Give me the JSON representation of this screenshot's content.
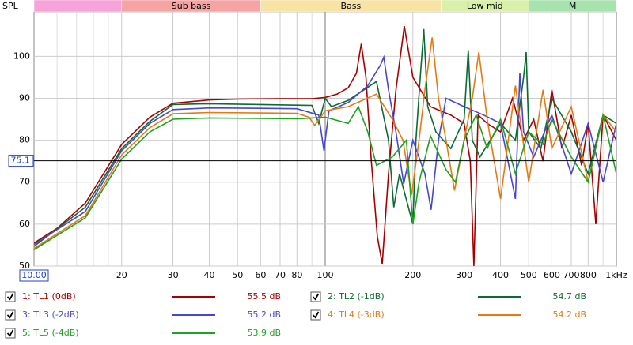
{
  "chart_data": {
    "type": "line",
    "y_label": "SPL",
    "xscale": "log",
    "grid": true,
    "xlim": [
      10,
      1000
    ],
    "ylim": [
      50,
      110.6
    ],
    "xticks": [
      20,
      30,
      40,
      50,
      60,
      70,
      80,
      100,
      200,
      300,
      400,
      500,
      600,
      700,
      800,
      {
        "value": 1000,
        "label": "1kHz"
      }
    ],
    "minor_xticks": [
      12,
      14,
      16,
      18,
      90,
      900
    ],
    "yticks": [
      50,
      60,
      70,
      80,
      90,
      100
    ],
    "cursor": {
      "x": {
        "value": 10,
        "label": "10.00"
      },
      "y": 75.1
    },
    "bands": [
      {
        "from": 10,
        "to": 20,
        "color": "#f7a3d9"
      },
      {
        "label": "Sub bass",
        "from": 20,
        "to": 60,
        "color": "#f5a3a3"
      },
      {
        "label": "Bass",
        "from": 60,
        "to": 250,
        "color": "#f7e3a3"
      },
      {
        "label": "Low mid",
        "from": 250,
        "to": 500,
        "color": "#d9f0a8"
      },
      {
        "label": "M",
        "from": 500,
        "to": 2000,
        "color": "#a6e3ad"
      }
    ],
    "series": [
      {
        "name": "1: TL1 (0dB)",
        "color": "#a80000",
        "legend_value": {
          "value": 55.5,
          "label": "55.5 dB"
        },
        "x": [
          10,
          12,
          15,
          20,
          25,
          30,
          40,
          50,
          70,
          90,
          100,
          110,
          120,
          128,
          133,
          138,
          144,
          151,
          157,
          165,
          175,
          187,
          200,
          230,
          270,
          300,
          315,
          324,
          335,
          360,
          400,
          440,
          480,
          520,
          560,
          600,
          650,
          700,
          760,
          800,
          850,
          900,
          1000
        ],
        "values": [
          55.5,
          59,
          65,
          79,
          85.5,
          88.8,
          89.6,
          89.8,
          89.9,
          89.9,
          90.2,
          91,
          92.5,
          96,
          103,
          95,
          75,
          57,
          50.5,
          72,
          92,
          107.2,
          95,
          88,
          86,
          84,
          75,
          50,
          86,
          84,
          82,
          90,
          80,
          85,
          75,
          92,
          78,
          86,
          74,
          84,
          60,
          86,
          80
        ]
      },
      {
        "name": "2: TL2 (-1dB)",
        "color": "#0b6b32",
        "legend_value": {
          "value": 54.7,
          "label": "54.7 dB"
        },
        "x": [
          10,
          15,
          20,
          25,
          30,
          40,
          60,
          90,
          95,
          100,
          105,
          120,
          150,
          165,
          172,
          180,
          200,
          205,
          212,
          218,
          225,
          240,
          270,
          300,
          310,
          320,
          340,
          400,
          450,
          480,
          490,
          500,
          550,
          600,
          700,
          800,
          900,
          1000
        ],
        "values": [
          54.7,
          64,
          78,
          84.5,
          88.5,
          88.7,
          88.5,
          88.3,
          84,
          90,
          88,
          89.5,
          94,
          80,
          64,
          72,
          60,
          80,
          95,
          106.5,
          88,
          82,
          78,
          85,
          101.5,
          80,
          76,
          84,
          80,
          95,
          101,
          82,
          78,
          90,
          82,
          72,
          86,
          84
        ]
      },
      {
        "name": "3: TL3 (-2dB)",
        "color": "#4646d2",
        "legend_value": {
          "value": 55.2,
          "label": "55.2 dB"
        },
        "x": [
          10,
          15,
          20,
          25,
          30,
          40,
          60,
          80,
          95,
          99,
          103,
          120,
          140,
          155,
          159,
          165,
          175,
          186,
          200,
          220,
          231,
          245,
          260,
          300,
          350,
          400,
          450,
          466,
          480,
          520,
          600,
          700,
          800,
          900,
          1000
        ],
        "values": [
          55.2,
          63,
          77.5,
          84,
          87.3,
          87.7,
          87.6,
          87.5,
          86,
          77.5,
          87,
          89,
          93,
          98,
          99.8,
          92,
          82,
          69.6,
          80,
          72,
          63.4,
          80,
          90,
          88,
          86,
          84,
          66,
          96,
          82,
          76,
          86,
          72,
          84,
          70,
          84
        ]
      },
      {
        "name": "4: TL4 (-3dB)",
        "color": "#e67a12",
        "legend_value": {
          "value": 54.2,
          "label": "54.2 dB"
        },
        "x": [
          10,
          15,
          20,
          25,
          30,
          40,
          60,
          80,
          88,
          92,
          100,
          120,
          150,
          170,
          185,
          198,
          210,
          220,
          233,
          245,
          260,
          278,
          300,
          320,
          337,
          360,
          400,
          450,
          500,
          560,
          600,
          700,
          800,
          900,
          1000
        ],
        "values": [
          54.2,
          62,
          76.5,
          83,
          86.3,
          86.6,
          86.5,
          86.4,
          85.5,
          83.5,
          87,
          88,
          91,
          85,
          80,
          67,
          80,
          92,
          104.5,
          90,
          80,
          68,
          80,
          90,
          101,
          85,
          66,
          93,
          70,
          92,
          78,
          88,
          70,
          86,
          82
        ]
      },
      {
        "name": "5: TL5 (-4dB)",
        "color": "#22a022",
        "legend_value": {
          "value": 53.9,
          "label": "53.9 dB"
        },
        "x": [
          10,
          15,
          20,
          25,
          30,
          40,
          60,
          80,
          100,
          120,
          130,
          140,
          150,
          170,
          190,
          200,
          210,
          230,
          260,
          280,
          300,
          330,
          360,
          400,
          450,
          500,
          560,
          600,
          700,
          800,
          900,
          1000
        ],
        "values": [
          53.9,
          61.5,
          75.5,
          82,
          85,
          85.3,
          85.2,
          85.1,
          85.5,
          84,
          88,
          82,
          74,
          76,
          80,
          60,
          70,
          81,
          73,
          70,
          80,
          86,
          78,
          85,
          72,
          82,
          79,
          85,
          76,
          70,
          86,
          72
        ]
      }
    ]
  }
}
